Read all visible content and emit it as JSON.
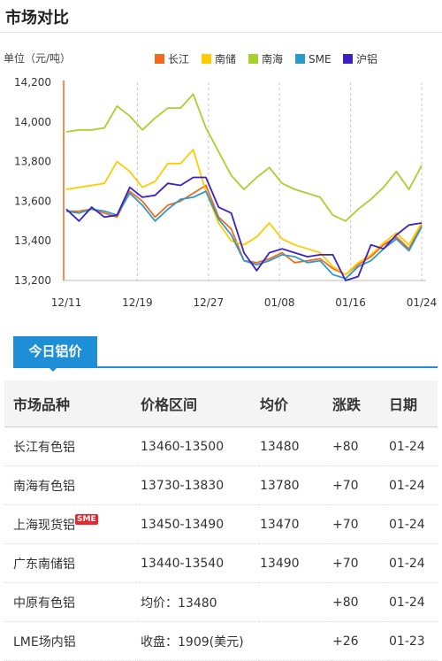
{
  "header": {
    "title": "市场对比"
  },
  "chart_data": {
    "type": "line",
    "unit_label": "单位（元/吨）",
    "ylim": [
      13200,
      14200
    ],
    "yticks": [
      13200,
      13400,
      13600,
      13800,
      14000,
      14200
    ],
    "ytick_labels": [
      "13,200",
      "13,400",
      "13,600",
      "13,800",
      "14,000",
      "14,200"
    ],
    "x_tick_labels": [
      "12/11",
      "12/19",
      "12/27",
      "01/08",
      "01/16",
      "01/24"
    ],
    "legend_position": "top",
    "grid": "vertical dashed",
    "series": [
      {
        "name": "长江",
        "color": "#f26b1d",
        "values": [
          13550,
          13550,
          13560,
          13540,
          13520,
          13650,
          13600,
          13520,
          13580,
          13600,
          13640,
          13680,
          13520,
          13460,
          13300,
          13290,
          13310,
          13340,
          13290,
          13300,
          13310,
          13260,
          13230,
          13280,
          13320,
          13380,
          13420,
          13360,
          13480
        ]
      },
      {
        "name": "南储",
        "color": "#ffcc00",
        "values": [
          13660,
          13670,
          13680,
          13690,
          13800,
          13750,
          13670,
          13700,
          13790,
          13790,
          13860,
          13650,
          13490,
          13400,
          13380,
          13420,
          13490,
          13410,
          13380,
          13360,
          13340,
          13270,
          13230,
          13290,
          13330,
          13390,
          13440,
          13380,
          13490
        ]
      },
      {
        "name": "南海",
        "color": "#a5d22c",
        "values": [
          13950,
          13960,
          13960,
          13970,
          14080,
          14030,
          13960,
          14020,
          14070,
          14070,
          14140,
          13970,
          13850,
          13730,
          13660,
          13720,
          13770,
          13690,
          13660,
          13640,
          13620,
          13530,
          13500,
          13560,
          13610,
          13670,
          13750,
          13660,
          13780
        ]
      },
      {
        "name": "SME",
        "color": "#2a9cc8",
        "values": [
          13550,
          13540,
          13560,
          13550,
          13530,
          13640,
          13580,
          13500,
          13560,
          13610,
          13620,
          13650,
          13510,
          13430,
          13300,
          13280,
          13300,
          13330,
          13320,
          13290,
          13300,
          13230,
          13210,
          13270,
          13300,
          13360,
          13410,
          13350,
          13470
        ]
      },
      {
        "name": "沪铝",
        "color": "#3d20c2",
        "values": [
          13560,
          13500,
          13570,
          13520,
          13530,
          13670,
          13620,
          13630,
          13690,
          13680,
          13720,
          13720,
          13570,
          13540,
          13340,
          13250,
          13340,
          13360,
          13340,
          13320,
          13330,
          13330,
          13200,
          13220,
          13380,
          13360,
          13430,
          13480,
          13490
        ]
      }
    ]
  },
  "today": {
    "tab_label": "今日铝价",
    "headers": [
      "市场品种",
      "价格区间",
      "均价",
      "涨跌",
      "日期"
    ],
    "rows": [
      {
        "market": "长江有色铝",
        "range": "13460-13500",
        "avg": "13480",
        "change": "+80",
        "date": "01-24",
        "badge": ""
      },
      {
        "market": "南海有色铝",
        "range": "13730-13830",
        "avg": "13780",
        "change": "+70",
        "date": "01-24",
        "badge": ""
      },
      {
        "market": "上海现货铝",
        "range": "13450-13490",
        "avg": "13470",
        "change": "+70",
        "date": "01-24",
        "badge": "SME"
      },
      {
        "market": "广东南储铝",
        "range": "13440-13540",
        "avg": "13490",
        "change": "+70",
        "date": "01-24",
        "badge": ""
      },
      {
        "market": "中原有色铝",
        "range": "均价：13480",
        "avg": "",
        "change": "+80",
        "date": "01-24",
        "badge": ""
      },
      {
        "market": "LME场内铝",
        "range": "收盘：1909(美元)",
        "avg": "",
        "change": "+26",
        "date": "01-23",
        "badge": ""
      }
    ]
  }
}
